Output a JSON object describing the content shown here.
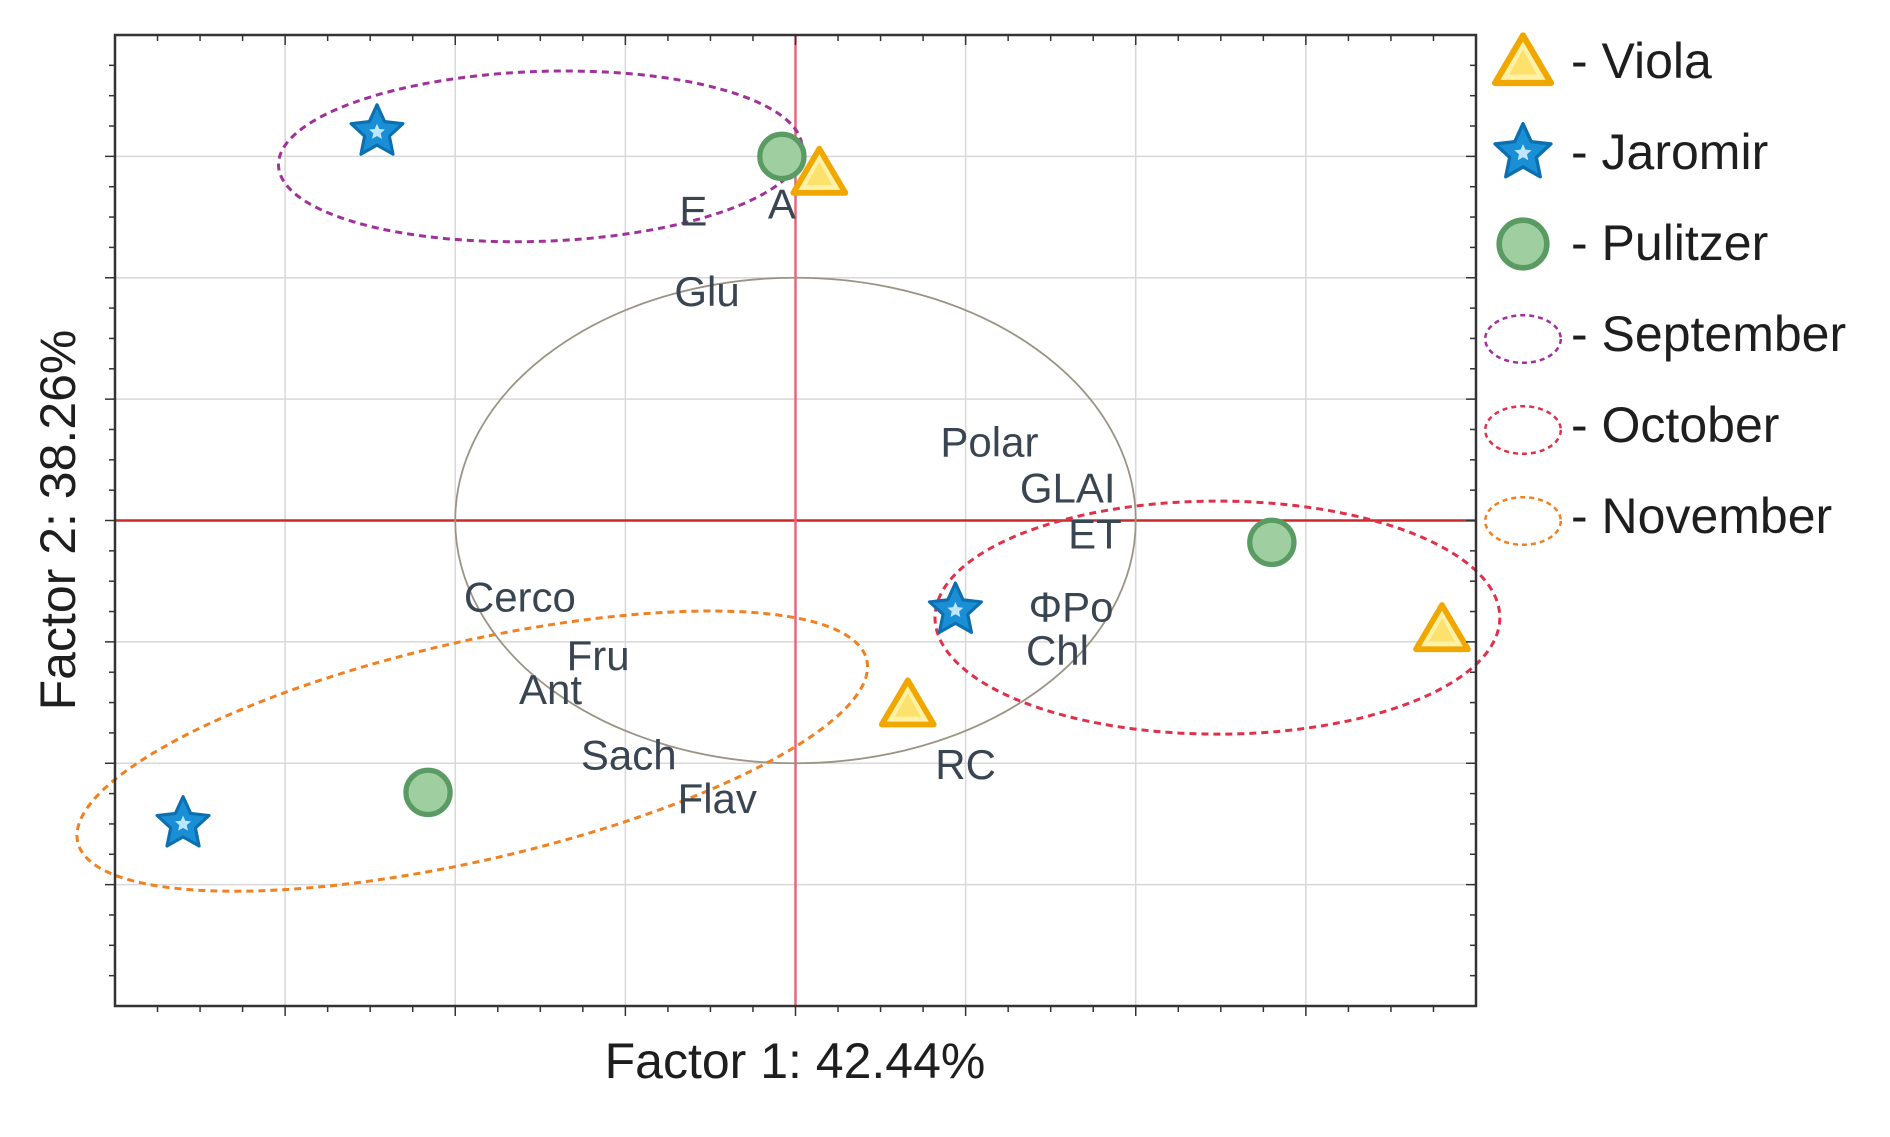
{
  "chart_data": {
    "type": "scatter",
    "xlabel": "Factor 1: 42.44%",
    "ylabel": "Factor 2: 38.26%",
    "xlim": [
      -2.0,
      2.0
    ],
    "ylim": [
      -2.0,
      2.0
    ],
    "xticks": [
      -1.5,
      -1.0,
      -0.5,
      0.0,
      0.5,
      1.0,
      1.5
    ],
    "yticks": [
      -1.5,
      -1.0,
      -0.5,
      0.0,
      0.5,
      1.0,
      1.5
    ],
    "grid": true,
    "legend_position": "right",
    "unit_circle_radius": 1.0,
    "series": [
      {
        "name": "Viola",
        "marker": "triangle",
        "color": "#f5c400",
        "edge": "#f0a800",
        "points": [
          {
            "x": 0.07,
            "y": 1.43
          },
          {
            "x": 0.33,
            "y": -0.76
          },
          {
            "x": 1.9,
            "y": -0.45
          }
        ]
      },
      {
        "name": "Jaromir",
        "marker": "star",
        "color": "#1a8fd6",
        "edge": "#0b6fb0",
        "points": [
          {
            "x": -1.23,
            "y": 1.6
          },
          {
            "x": 0.47,
            "y": -0.37
          },
          {
            "x": -1.8,
            "y": -1.25
          }
        ]
      },
      {
        "name": "Pulitzer",
        "marker": "circle",
        "color": "#9fcfa1",
        "edge": "#5a9a63",
        "points": [
          {
            "x": -0.04,
            "y": 1.5
          },
          {
            "x": 1.4,
            "y": -0.09
          },
          {
            "x": -1.08,
            "y": -1.12
          }
        ]
      }
    ],
    "groups": [
      {
        "name": "September",
        "color": "#a0309a",
        "cx": -0.75,
        "cy": 1.5,
        "rx": 0.77,
        "ry": 0.35,
        "angle_deg": 2
      },
      {
        "name": "October",
        "color": "#e0304a",
        "cx": 1.24,
        "cy": -0.4,
        "rx": 0.83,
        "ry": 0.48,
        "angle_deg": 0
      },
      {
        "name": "November",
        "color": "#f08020",
        "cx": -0.95,
        "cy": -0.95,
        "rx": 1.19,
        "ry": 0.45,
        "angle_deg": 13
      }
    ],
    "variables": [
      {
        "label": "E",
        "x": -0.3,
        "y": 1.26
      },
      {
        "label": "A",
        "x": -0.04,
        "y": 1.29
      },
      {
        "label": "Glu",
        "x": -0.26,
        "y": 0.93
      },
      {
        "label": "Polar",
        "x": 0.57,
        "y": 0.31
      },
      {
        "label": "GLAI",
        "x": 0.8,
        "y": 0.12
      },
      {
        "label": "ET",
        "x": 0.88,
        "y": -0.07
      },
      {
        "label": "ΦPo",
        "x": 0.81,
        "y": -0.37
      },
      {
        "label": "Chl",
        "x": 0.77,
        "y": -0.55
      },
      {
        "label": "Cerco",
        "x": -0.81,
        "y": -0.33
      },
      {
        "label": "Fru",
        "x": -0.58,
        "y": -0.57
      },
      {
        "label": "Ant",
        "x": -0.72,
        "y": -0.71
      },
      {
        "label": "Sach",
        "x": -0.49,
        "y": -0.98
      },
      {
        "label": "Flav",
        "x": -0.23,
        "y": -1.16
      },
      {
        "label": "RC",
        "x": 0.5,
        "y": -1.02
      }
    ]
  },
  "legend": [
    {
      "marker": "triangle",
      "label": "- Viola"
    },
    {
      "marker": "star",
      "label": "- Jaromir"
    },
    {
      "marker": "circle",
      "label": "- Pulitzer"
    },
    {
      "marker": "ellipse",
      "label": "- September",
      "color": "#a0309a"
    },
    {
      "marker": "ellipse",
      "label": "- October",
      "color": "#e0304a"
    },
    {
      "marker": "ellipse",
      "label": "- November",
      "color": "#f08020"
    }
  ],
  "colors": {
    "axis_zero": "#cc2a2a",
    "axis_zero_vertical": "#e06a7a",
    "grid": "#d8d8d8",
    "frame": "#333333",
    "circle": "#9a9484",
    "text": "#3a4552"
  }
}
